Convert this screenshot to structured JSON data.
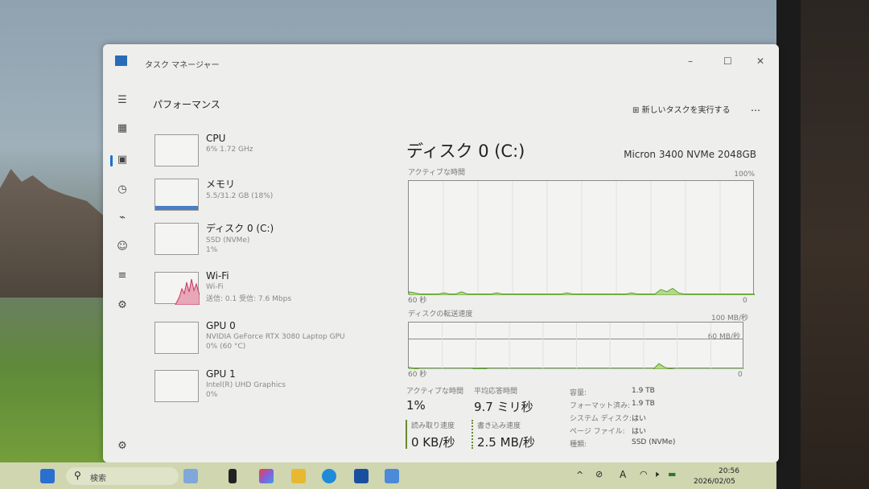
{
  "window": {
    "title": "タスク マネージャー",
    "minimize": "–",
    "maximize": "☐",
    "close": "✕"
  },
  "header": {
    "page_title": "パフォーマンス",
    "run_new_task": "新しいタスクを実行する",
    "more": "…"
  },
  "sidebar_icons": [
    "hamburger-icon",
    "processes-icon",
    "performance-icon",
    "app-history-icon",
    "startup-icon",
    "users-icon",
    "details-icon",
    "services-icon",
    "settings-icon"
  ],
  "devices": [
    {
      "name": "CPU",
      "line1": "6% 1.72 GHz",
      "line2": ""
    },
    {
      "name": "メモリ",
      "line1": "5.5/31.2 GB (18%)",
      "line2": ""
    },
    {
      "name": "ディスク 0 (C:)",
      "line1": "SSD (NVMe)",
      "line2": "1%"
    },
    {
      "name": "Wi-Fi",
      "line1": "Wi-Fi",
      "line2": "送信: 0.1 受信: 7.6 Mbps"
    },
    {
      "name": "GPU 0",
      "line1": "NVIDIA GeForce RTX 3080 Laptop GPU",
      "line2": "0% (60 °C)"
    },
    {
      "name": "GPU 1",
      "line1": "Intel(R) UHD Graphics",
      "line2": "0%"
    }
  ],
  "main": {
    "title": "ディスク 0 (C:)",
    "model": "Micron 3400 NVMe 2048GB",
    "active_chart": {
      "label": "アクティブな時間",
      "ymax": "100%",
      "xstart": "60 秒",
      "xend": "0",
      "values": [
        3,
        2,
        1,
        1,
        1,
        1,
        2,
        1,
        1,
        3,
        1,
        1,
        1,
        1,
        1,
        2,
        1,
        1,
        1,
        1,
        1,
        1,
        1,
        1,
        1,
        1,
        1,
        2,
        1,
        1,
        1,
        1,
        1,
        1,
        1,
        1,
        1,
        1,
        2,
        1,
        1,
        1,
        1,
        5,
        3,
        6,
        2,
        1,
        1,
        1,
        1,
        1,
        1,
        1,
        1,
        1,
        1,
        1,
        1,
        1
      ]
    },
    "transfer_chart": {
      "label": "ディスクの転送速度",
      "ymax": "100 MB/秒",
      "inner_line": "60 MB/秒",
      "xstart": "60 秒",
      "xend": "0",
      "values": [
        4,
        2,
        0,
        0,
        0,
        0,
        0,
        0,
        0,
        0,
        0,
        0,
        2,
        2,
        0,
        0,
        0,
        0,
        0,
        0,
        0,
        0,
        0,
        0,
        0,
        0,
        0,
        0,
        0,
        0,
        0,
        0,
        0,
        0,
        0,
        0,
        0,
        0,
        0,
        0,
        0,
        0,
        0,
        0,
        12,
        4,
        1,
        0,
        0,
        0,
        0,
        0,
        0,
        0,
        0,
        0,
        0,
        0,
        0,
        0
      ]
    },
    "colors": {
      "disk_line": "#5fa12c",
      "disk_fill": "#b5d98a",
      "wifi": "#c8385f",
      "memory": "#4a7ec7"
    },
    "stats": {
      "active_label": "アクティブな時間",
      "active_value": "1%",
      "response_label": "平均応答時間",
      "response_value": "9.7 ミリ秒",
      "read_label": "読み取り速度",
      "read_value": "0 KB/秒",
      "write_label": "書き込み速度",
      "write_value": "2.5 MB/秒"
    },
    "props": [
      {
        "k": "容量:",
        "v": "1.9 TB"
      },
      {
        "k": "フォーマット済み:",
        "v": "1.9 TB"
      },
      {
        "k": "システム ディスク:",
        "v": "はい"
      },
      {
        "k": "ページ ファイル:",
        "v": "はい"
      },
      {
        "k": "種類:",
        "v": "SSD (NVMe)"
      }
    ]
  },
  "taskbar": {
    "search": "検索",
    "time": "20:56",
    "date": "2026/02/05",
    "tray_chevron": "^",
    "ime": "A"
  }
}
